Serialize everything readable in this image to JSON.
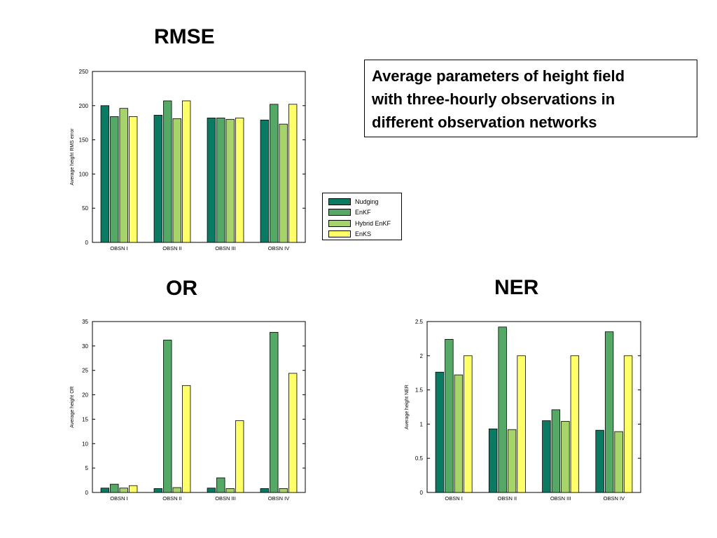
{
  "infobox": {
    "line1": "Average parameters of height field",
    "line2": "with three-hourly observations in",
    "line3": "different observation networks"
  },
  "series_colors": {
    "Nudging": "#0a7a62",
    "EnKF": "#55a866",
    "Hybrid EnKF": "#a6d46a",
    "EnKS": "#ffff6a"
  },
  "legend": [
    {
      "name": "Nudging",
      "color": "#0a7a62"
    },
    {
      "name": "EnKF",
      "color": "#55a866"
    },
    {
      "name": "Hybrid EnKF",
      "color": "#a6d46a"
    },
    {
      "name": "EnKS",
      "color": "#ffff6a"
    }
  ],
  "chart_data": [
    {
      "type": "bar",
      "title": "RMSE",
      "categories": [
        "OBSN I",
        "OBSN II",
        "OBSN III",
        "OBSN IV"
      ],
      "ylabel": "Average height RMS error",
      "xlabel": "",
      "ylim": [
        0,
        250
      ],
      "yticks": [
        "0",
        "50",
        "100",
        "150",
        "200",
        "250"
      ],
      "legend_position": "bottom-right outside",
      "series": [
        {
          "name": "Nudging",
          "values": [
            200,
            186,
            182,
            179
          ]
        },
        {
          "name": "EnKF",
          "values": [
            184,
            207,
            182,
            202
          ]
        },
        {
          "name": "Hybrid EnKF",
          "values": [
            196,
            181,
            180,
            173
          ]
        },
        {
          "name": "EnKS",
          "values": [
            184,
            207,
            182,
            202
          ]
        }
      ]
    },
    {
      "type": "bar",
      "title": "OR",
      "categories": [
        "OBSN I",
        "OBSN II",
        "OBSN III",
        "OBSN IV"
      ],
      "ylabel": "Average height OR",
      "xlabel": "",
      "ylim": [
        0,
        35
      ],
      "yticks": [
        "0",
        "5",
        "10",
        "15",
        "20",
        "25",
        "30",
        "35"
      ],
      "series": [
        {
          "name": "Nudging",
          "values": [
            0.9,
            0.8,
            0.9,
            0.8
          ]
        },
        {
          "name": "EnKF",
          "values": [
            1.7,
            31.2,
            3.0,
            32.8
          ]
        },
        {
          "name": "Hybrid EnKF",
          "values": [
            0.9,
            1.0,
            0.8,
            0.8
          ]
        },
        {
          "name": "EnKS",
          "values": [
            1.4,
            21.9,
            14.7,
            24.4
          ]
        }
      ]
    },
    {
      "type": "bar",
      "title": "NER",
      "categories": [
        "OBSN I",
        "OBSN II",
        "OBSN III",
        "OBSN IV"
      ],
      "ylabel": "Average height NER",
      "xlabel": "",
      "ylim": [
        0,
        2.5
      ],
      "yticks": [
        "0",
        "0.5",
        "1",
        "1.5",
        "2",
        "2.5"
      ],
      "series": [
        {
          "name": "Nudging",
          "values": [
            1.76,
            0.93,
            1.05,
            0.91
          ]
        },
        {
          "name": "EnKF",
          "values": [
            2.24,
            2.42,
            1.21,
            2.35
          ]
        },
        {
          "name": "Hybrid EnKF",
          "values": [
            1.72,
            0.92,
            1.04,
            0.89
          ]
        },
        {
          "name": "EnKS",
          "values": [
            2.0,
            2.0,
            2.0,
            2.0
          ]
        }
      ]
    }
  ]
}
